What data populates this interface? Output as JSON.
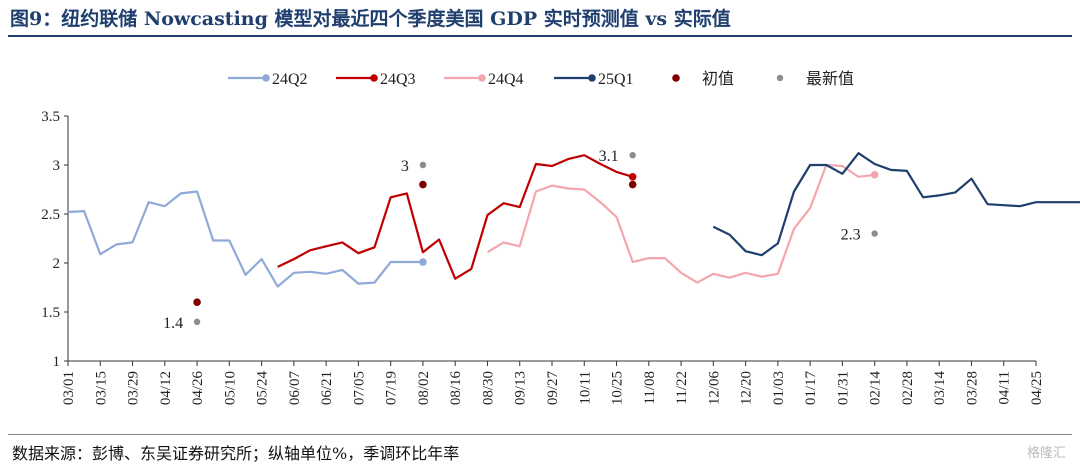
{
  "title": "图9：纽约联储 Nowcasting 模型对最近四个季度美国 GDP 实时预测值 vs 实际值",
  "source": "数据来源：彭博、东吴证券研究所；纵轴单位%，季调环比年率",
  "watermark": "格隆汇",
  "colors": {
    "title": "#1f3f6e",
    "24Q2": "#8faad9",
    "24Q3": "#c00000",
    "24Q4": "#f4a6ad",
    "25Q1": "#1f3f6e",
    "initial": "#800000",
    "latest": "#8c8c8c"
  },
  "chart_data": {
    "type": "line",
    "ylim": [
      1,
      3.5
    ],
    "yticks": [
      "1",
      "1.5",
      "2",
      "2.5",
      "3",
      "3.5"
    ],
    "xtick_labels": [
      "03/01",
      "03/15",
      "03/29",
      "04/12",
      "04/26",
      "05/10",
      "05/24",
      "06/07",
      "06/21",
      "07/05",
      "07/19",
      "08/02",
      "08/16",
      "08/30",
      "09/13",
      "09/27",
      "10/11",
      "10/25",
      "11/08",
      "11/22",
      "12/06",
      "12/20",
      "01/03",
      "01/17",
      "01/31",
      "02/14",
      "02/28",
      "03/14",
      "03/28",
      "04/11",
      "04/25"
    ],
    "legend": [
      "24Q2",
      "24Q3",
      "24Q4",
      "25Q1",
      "初值",
      "最新值"
    ],
    "series": [
      {
        "name": "24Q2",
        "x": [
          0,
          0.5,
          1,
          1.5,
          2,
          2.5,
          3,
          3.5,
          4,
          4.5,
          5,
          5.5,
          6,
          6.5,
          7,
          7.5,
          8,
          8.5,
          9,
          9.5,
          10,
          10.5,
          11
        ],
        "values": [
          2.52,
          2.53,
          2.09,
          2.19,
          2.21,
          2.62,
          2.58,
          2.71,
          2.73,
          2.23,
          2.23,
          1.88,
          2.04,
          1.76,
          1.9,
          1.91,
          1.89,
          1.93,
          1.79,
          1.8,
          2.01,
          2.01,
          2.01
        ]
      },
      {
        "name": "24Q3",
        "x": [
          6.5,
          7,
          7.5,
          8,
          8.5,
          9,
          9.5,
          10,
          10.5,
          11,
          11.5,
          12,
          12.5,
          13,
          13.5,
          14,
          14.5,
          15,
          15.5,
          16,
          16.5,
          17,
          17.5
        ],
        "values": [
          1.96,
          2.04,
          2.13,
          2.17,
          2.21,
          2.1,
          2.16,
          2.67,
          2.71,
          2.11,
          2.24,
          1.84,
          1.94,
          2.49,
          2.61,
          2.57,
          3.01,
          2.99,
          3.06,
          3.1,
          3.01,
          2.93,
          2.88
        ]
      },
      {
        "name": "24Q4",
        "x": [
          13,
          13.5,
          14,
          14.5,
          15,
          15.5,
          16,
          16.5,
          17,
          17.5,
          18,
          18.5,
          19,
          19.5,
          20,
          20.5,
          21,
          21.5,
          22,
          22.5,
          23,
          23.5,
          24,
          24.5,
          25
        ],
        "values": [
          2.11,
          2.21,
          2.17,
          2.73,
          2.79,
          2.76,
          2.75,
          2.62,
          2.47,
          2.01,
          2.05,
          2.05,
          1.9,
          1.8,
          1.89,
          1.85,
          1.9,
          1.86,
          1.89,
          2.35,
          2.56,
          3.0,
          2.99,
          2.88,
          2.9
        ]
      },
      {
        "name": "25Q1",
        "x": [
          20,
          20.5,
          21,
          21.5,
          22,
          22.5,
          23,
          23.5,
          24,
          24.5,
          25,
          25.5,
          26,
          26.5,
          27,
          27.5,
          28,
          28.5,
          29,
          29.5,
          30,
          30.5,
          31,
          31.5,
          32
        ],
        "values": [
          2.37,
          2.29,
          2.12,
          2.08,
          2.2,
          2.73,
          3.0,
          3.0,
          2.91,
          3.12,
          3.01,
          2.95,
          2.94,
          2.67,
          2.69,
          2.72,
          2.86,
          2.6,
          2.59,
          2.58,
          2.62,
          2.62,
          2.62,
          2.62,
          2.62
        ]
      }
    ],
    "initial_points": [
      {
        "series": "24Q2",
        "x": 4,
        "value": 1.6
      },
      {
        "series": "24Q3",
        "x": 11,
        "value": 2.8
      },
      {
        "series": "24Q4",
        "x": 17.5,
        "value": 2.8
      }
    ],
    "latest_points": [
      {
        "series": "24Q2",
        "x": 4,
        "value": 1.4,
        "label": "1.4"
      },
      {
        "series": "24Q3",
        "x": 11,
        "value": 3.0,
        "label": "3"
      },
      {
        "series": "24Q4",
        "x": 17.5,
        "value": 3.1,
        "label": "3.1"
      },
      {
        "series": "25Q1",
        "x": 25,
        "value": 2.3,
        "label": "2.3"
      }
    ],
    "end_points": [
      {
        "series": "24Q2",
        "x": 11,
        "value": 2.01
      },
      {
        "series": "24Q3",
        "x": 17.5,
        "value": 2.88
      },
      {
        "series": "24Q4",
        "x": 25,
        "value": 2.9
      },
      {
        "series": "25Q1",
        "x": 32,
        "value": 2.62
      }
    ]
  }
}
